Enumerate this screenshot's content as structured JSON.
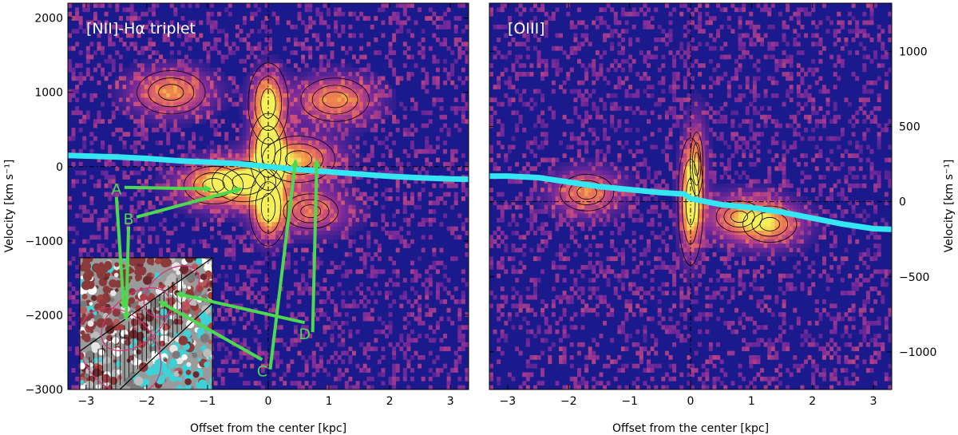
{
  "figure": {
    "colors": {
      "background": "#1a1a8c",
      "low": "#7a2a9a",
      "mid": "#d0507a",
      "high": "#f28a4a",
      "peak": "#f5f05a",
      "fit_curve": "#33e6f2",
      "annotation": "#4dd94d",
      "panel_label": "#ffffff"
    }
  },
  "chart_data": [
    {
      "type": "heatmap",
      "title": "[NII]-Hα triplet",
      "xlabel": "Offset from the center [kpc]",
      "ylabel": "Velocity [km s⁻¹]",
      "xlim": [
        -3.3,
        3.3
      ],
      "ylim": [
        -3000,
        2200
      ],
      "xticks": [
        "−3",
        "−2",
        "−1",
        "0",
        "1",
        "2",
        "3"
      ],
      "xtick_values": [
        -3,
        -2,
        -1,
        0,
        1,
        2,
        3
      ],
      "yticks": [
        "−3000",
        "−2000",
        "−1000",
        "0",
        "1000",
        "2000"
      ],
      "ytick_values": [
        -3000,
        -2000,
        -1000,
        0,
        1000,
        2000
      ],
      "emission_components": [
        {
          "x": 0.0,
          "y": 850,
          "peak": 1.0
        },
        {
          "x": 0.0,
          "y": 200,
          "peak": 0.95
        },
        {
          "x": 0.0,
          "y": -550,
          "peak": 0.95
        },
        {
          "x": -1.6,
          "y": 1000,
          "peak": 0.75
        },
        {
          "x": 1.1,
          "y": 900,
          "peak": 0.75
        },
        {
          "x": -0.9,
          "y": -250,
          "peak": 0.65
        },
        {
          "x": 0.5,
          "y": 100,
          "peak": 0.8
        },
        {
          "x": -0.4,
          "y": -200,
          "peak": 0.7
        },
        {
          "x": 0.7,
          "y": -600,
          "peak": 0.6
        }
      ],
      "series": [
        {
          "x": [
            -3.3,
            -2.5,
            -2.0,
            -1.5,
            -1.0,
            -0.5,
            0.0,
            0.5,
            1.0,
            1.5,
            2.0,
            2.5,
            3.0,
            3.3
          ],
          "y": [
            150,
            130,
            110,
            80,
            60,
            40,
            0,
            -40,
            -70,
            -100,
            -130,
            -150,
            -165,
            -170
          ]
        }
      ],
      "annotations": [
        {
          "label": "A",
          "x": -2.5,
          "y": -300,
          "target_x": -0.95,
          "target_y": -300
        },
        {
          "label": "B",
          "x": -2.3,
          "y": -700,
          "target_x": -0.45,
          "target_y": -300
        },
        {
          "label": "C",
          "x": -0.1,
          "y": -2750,
          "target_x": 0.45,
          "target_y": 80
        },
        {
          "label": "D",
          "x": 0.6,
          "y": -2250,
          "target_x": 0.8,
          "target_y": 80
        }
      ],
      "inset": {
        "description_shown": false
      }
    },
    {
      "type": "heatmap",
      "title": "[OIII]",
      "xlabel": "Offset from the center [kpc]",
      "ylabel": "Velocity [km s⁻¹]",
      "xlim": [
        -3.3,
        3.3
      ],
      "ylim": [
        -1250,
        1320
      ],
      "xticks": [
        "−3",
        "−2",
        "−1",
        "0",
        "1",
        "2",
        "3"
      ],
      "xtick_values": [
        -3,
        -2,
        -1,
        0,
        1,
        2,
        3
      ],
      "yticks": [
        "−1000",
        "−500",
        "0",
        "500",
        "1000"
      ],
      "ytick_values": [
        -1000,
        -500,
        0,
        500,
        1000
      ],
      "y_axis_side": "right",
      "emission_components": [
        {
          "x": 0.0,
          "y": 0,
          "peak": 1.0
        },
        {
          "x": -1.7,
          "y": 60,
          "peak": 0.7
        },
        {
          "x": 0.8,
          "y": -100,
          "peak": 0.6
        },
        {
          "x": 1.3,
          "y": -150,
          "peak": 0.7
        },
        {
          "x": 0.1,
          "y": 250,
          "peak": 0.5
        }
      ],
      "series": [
        {
          "x": [
            -3.3,
            -3.0,
            -2.5,
            -2.0,
            -1.5,
            -1.0,
            -0.5,
            -0.1,
            0.0,
            0.5,
            1.0,
            1.5,
            2.0,
            2.5,
            3.0,
            3.3
          ],
          "y": [
            170,
            170,
            160,
            130,
            100,
            80,
            60,
            50,
            20,
            -20,
            -40,
            -70,
            -110,
            -150,
            -180,
            -185
          ]
        }
      ]
    }
  ]
}
